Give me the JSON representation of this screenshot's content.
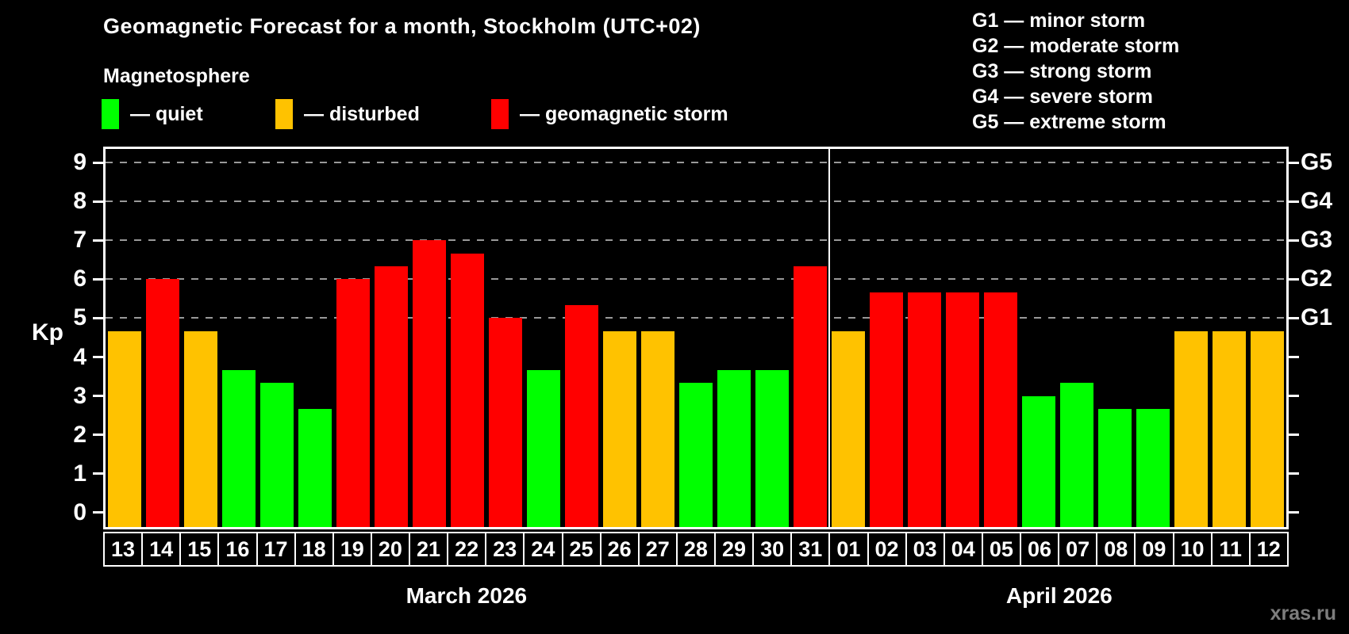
{
  "title": "Geomagnetic Forecast for a month, Stockholm (UTC+02)",
  "subtitle": "Magnetosphere",
  "legend": {
    "items": [
      {
        "label": "— quiet",
        "status": "quiet",
        "color": "#00ff00"
      },
      {
        "label": "— disturbed",
        "status": "disturbed",
        "color": "#ffc200"
      },
      {
        "label": "— geomagnetic storm",
        "status": "storm",
        "color": "#ff0000"
      }
    ]
  },
  "g_legend": [
    {
      "label": "G1 — minor storm"
    },
    {
      "label": "G2 — moderate storm"
    },
    {
      "label": "G3 — strong storm"
    },
    {
      "label": "G4 — severe storm"
    },
    {
      "label": "G5 — extreme storm"
    }
  ],
  "kp_axis_label": "Kp",
  "watermark": "xras.ru",
  "chart_data": {
    "type": "bar",
    "title": "Geomagnetic Forecast for a month, Stockholm (UTC+02)",
    "ylabel": "Kp",
    "ylim": [
      0,
      9
    ],
    "yticks": [
      0,
      1,
      2,
      3,
      4,
      5,
      6,
      7,
      8,
      9
    ],
    "gridlines_at": [
      5,
      6,
      7,
      8,
      9
    ],
    "grid": "dashed horizontal at storm levels only",
    "right_axis_labels": [
      {
        "kp": 5,
        "label": "G1"
      },
      {
        "kp": 6,
        "label": "G2"
      },
      {
        "kp": 7,
        "label": "G3"
      },
      {
        "kp": 8,
        "label": "G4"
      },
      {
        "kp": 9,
        "label": "G5"
      }
    ],
    "colors": {
      "quiet": "#00ff00",
      "disturbed": "#ffc200",
      "storm": "#ff0000"
    },
    "months": [
      {
        "label": "March 2026",
        "days": 19
      },
      {
        "label": "April 2026",
        "days": 12
      }
    ],
    "bars": [
      {
        "day": "13",
        "kp": 4.67,
        "status": "disturbed"
      },
      {
        "day": "14",
        "kp": 6.0,
        "status": "storm"
      },
      {
        "day": "15",
        "kp": 4.67,
        "status": "disturbed"
      },
      {
        "day": "16",
        "kp": 3.67,
        "status": "quiet"
      },
      {
        "day": "17",
        "kp": 3.33,
        "status": "quiet"
      },
      {
        "day": "18",
        "kp": 2.67,
        "status": "quiet"
      },
      {
        "day": "19",
        "kp": 6.0,
        "status": "storm"
      },
      {
        "day": "20",
        "kp": 6.33,
        "status": "storm"
      },
      {
        "day": "21",
        "kp": 7.0,
        "status": "storm"
      },
      {
        "day": "22",
        "kp": 6.67,
        "status": "storm"
      },
      {
        "day": "23",
        "kp": 5.0,
        "status": "storm"
      },
      {
        "day": "24",
        "kp": 3.67,
        "status": "quiet"
      },
      {
        "day": "25",
        "kp": 5.33,
        "status": "storm"
      },
      {
        "day": "26",
        "kp": 4.67,
        "status": "disturbed"
      },
      {
        "day": "27",
        "kp": 4.67,
        "status": "disturbed"
      },
      {
        "day": "28",
        "kp": 3.33,
        "status": "quiet"
      },
      {
        "day": "29",
        "kp": 3.67,
        "status": "quiet"
      },
      {
        "day": "30",
        "kp": 3.67,
        "status": "quiet"
      },
      {
        "day": "31",
        "kp": 6.33,
        "status": "storm"
      },
      {
        "day": "01",
        "kp": 4.67,
        "status": "disturbed"
      },
      {
        "day": "02",
        "kp": 5.67,
        "status": "storm"
      },
      {
        "day": "03",
        "kp": 5.67,
        "status": "storm"
      },
      {
        "day": "04",
        "kp": 5.67,
        "status": "storm"
      },
      {
        "day": "05",
        "kp": 5.67,
        "status": "storm"
      },
      {
        "day": "06",
        "kp": 3.0,
        "status": "quiet"
      },
      {
        "day": "07",
        "kp": 3.33,
        "status": "quiet"
      },
      {
        "day": "08",
        "kp": 2.67,
        "status": "quiet"
      },
      {
        "day": "09",
        "kp": 2.67,
        "status": "quiet"
      },
      {
        "day": "10",
        "kp": 4.67,
        "status": "disturbed"
      },
      {
        "day": "11",
        "kp": 4.67,
        "status": "disturbed"
      },
      {
        "day": "12",
        "kp": 4.67,
        "status": "disturbed"
      }
    ]
  }
}
